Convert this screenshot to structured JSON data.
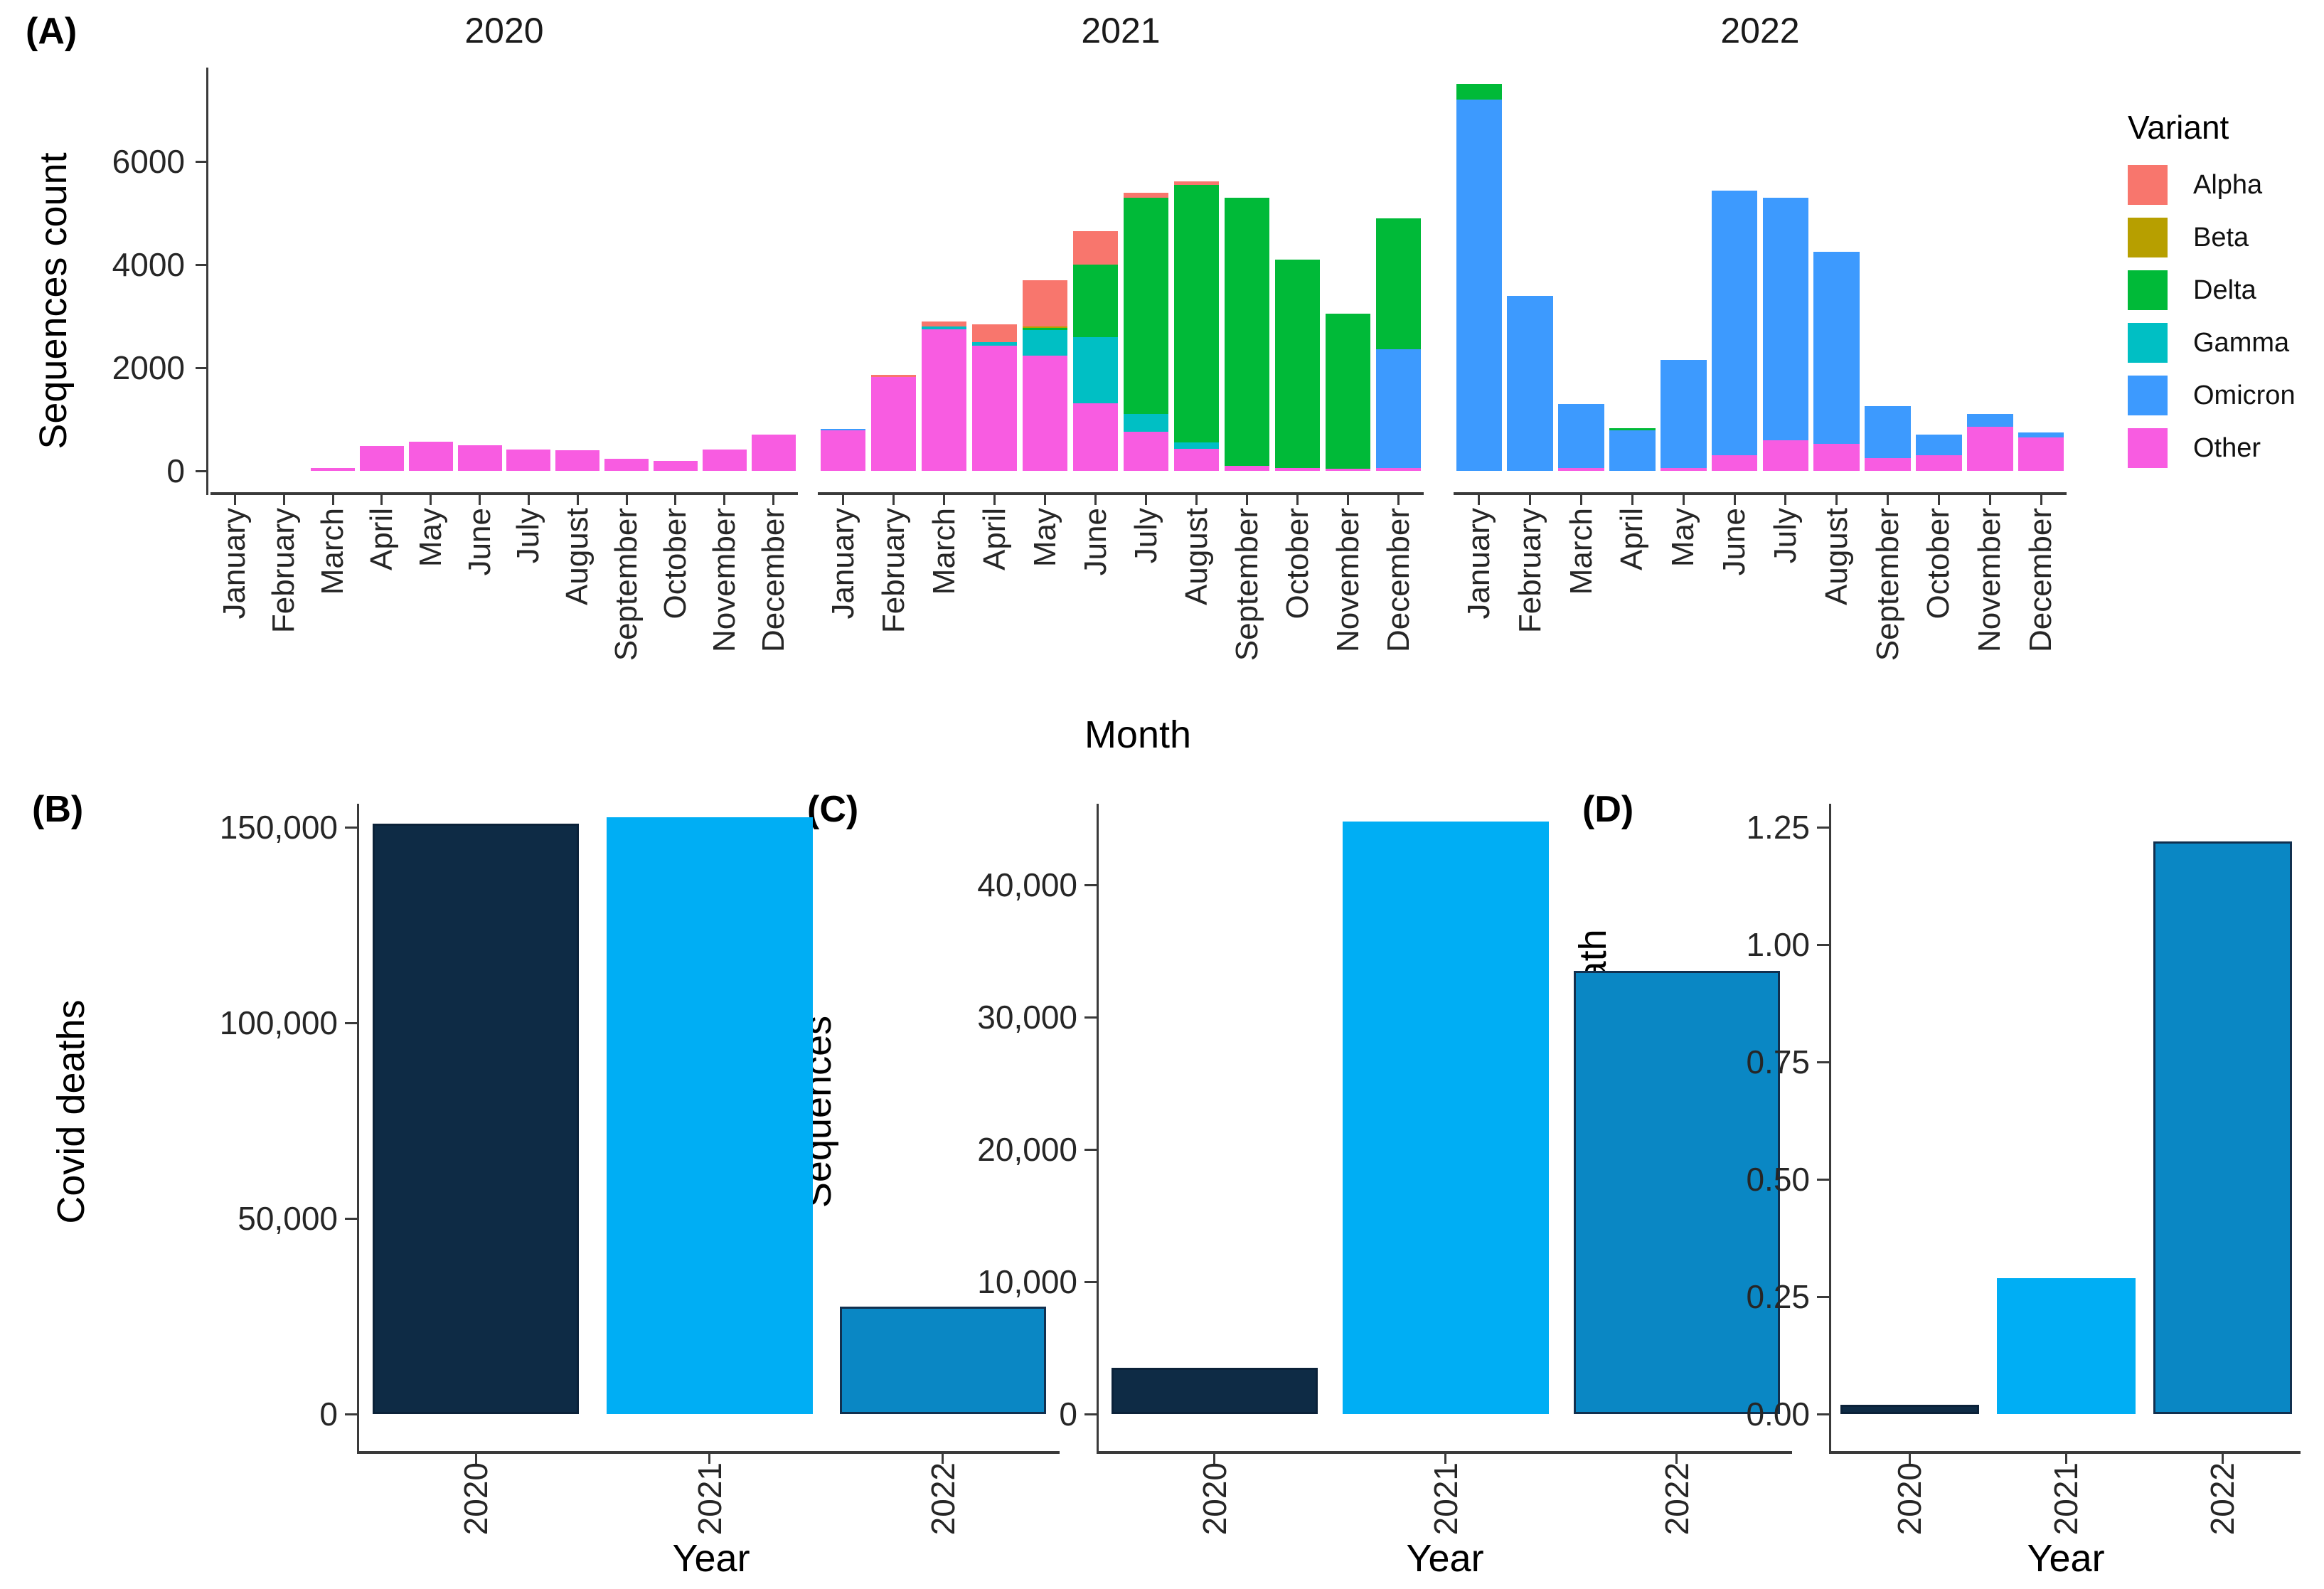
{
  "figure": {
    "description": "Four-panel figure of SARS-CoV-2 sequencing: monthly sequence counts by variant (A), and yearly Covid deaths (B), sequences (C), sequences per death (D)"
  },
  "chart_data": [
    {
      "id": "A",
      "tag": "(A)",
      "type": "bar",
      "stacked": true,
      "facets": [
        "2020",
        "2021",
        "2022"
      ],
      "categories": [
        "January",
        "February",
        "March",
        "April",
        "May",
        "June",
        "July",
        "August",
        "September",
        "October",
        "November",
        "December"
      ],
      "ylabel": "Sequences count",
      "xlabel": "Month",
      "ylim": [
        0,
        7800
      ],
      "yticks": [
        0,
        2000,
        4000,
        6000
      ],
      "ytick_labels": [
        "0",
        "2000",
        "4000",
        "6000"
      ],
      "grid": false,
      "legend_position": "right",
      "legend": {
        "title": "Variant",
        "entries": [
          {
            "label": "Alpha",
            "color": "#F8766D"
          },
          {
            "label": "Beta",
            "color": "#B79F00"
          },
          {
            "label": "Delta",
            "color": "#00BA38"
          },
          {
            "label": "Gamma",
            "color": "#00BFC4"
          },
          {
            "label": "Omicron",
            "color": "#3D9AFE"
          },
          {
            "label": "Other",
            "color": "#F85CE1"
          }
        ]
      },
      "stack_order": [
        "Other",
        "Omicron",
        "Gamma",
        "Delta",
        "Beta",
        "Alpha"
      ],
      "series": [
        {
          "name": "Alpha",
          "color": "#F8766D",
          "values": {
            "2020": [
              0,
              0,
              0,
              0,
              0,
              0,
              0,
              0,
              0,
              0,
              0,
              0
            ],
            "2021": [
              0,
              40,
              90,
              340,
              900,
              650,
              100,
              60,
              0,
              0,
              0,
              0
            ],
            "2022": [
              0,
              0,
              0,
              0,
              0,
              0,
              0,
              0,
              0,
              0,
              0,
              0
            ]
          }
        },
        {
          "name": "Beta",
          "color": "#B79F00",
          "values": {
            "2020": [
              0,
              0,
              0,
              0,
              0,
              0,
              0,
              0,
              0,
              0,
              0,
              0
            ],
            "2021": [
              0,
              0,
              0,
              0,
              30,
              0,
              0,
              0,
              0,
              0,
              0,
              0
            ],
            "2022": [
              0,
              0,
              0,
              0,
              0,
              0,
              0,
              0,
              0,
              0,
              0,
              0
            ]
          }
        },
        {
          "name": "Delta",
          "color": "#00BA38",
          "values": {
            "2020": [
              0,
              0,
              0,
              0,
              0,
              0,
              0,
              0,
              0,
              0,
              0,
              0
            ],
            "2021": [
              0,
              0,
              0,
              0,
              40,
              1400,
              4190,
              5000,
              5210,
              4050,
              3010,
              2540
            ],
            "2022": [
              300,
              0,
              0,
              40,
              0,
              0,
              0,
              0,
              0,
              0,
              0,
              0
            ]
          }
        },
        {
          "name": "Gamma",
          "color": "#00BFC4",
          "values": {
            "2020": [
              0,
              0,
              0,
              0,
              0,
              0,
              0,
              0,
              0,
              0,
              0,
              0
            ],
            "2021": [
              0,
              0,
              50,
              70,
              500,
              1290,
              350,
              120,
              0,
              0,
              0,
              0
            ],
            "2022": [
              0,
              0,
              0,
              0,
              0,
              0,
              0,
              0,
              0,
              0,
              0,
              0
            ]
          }
        },
        {
          "name": "Omicron",
          "color": "#3D9AFE",
          "values": {
            "2020": [
              0,
              0,
              0,
              0,
              0,
              0,
              0,
              0,
              0,
              0,
              0,
              0
            ],
            "2021": [
              40,
              0,
              0,
              0,
              0,
              0,
              0,
              0,
              0,
              0,
              0,
              2300
            ],
            "2022": [
              7200,
              3390,
              1250,
              790,
              2100,
              5140,
              4700,
              3730,
              1000,
              400,
              250,
              100
            ]
          }
        },
        {
          "name": "Other",
          "color": "#F85CE1",
          "values": {
            "2020": [
              0,
              0,
              60,
              480,
              560,
              500,
              410,
              400,
              230,
              190,
              410,
              700
            ],
            "2021": [
              780,
              1820,
              2750,
              2430,
              2230,
              1310,
              760,
              430,
              90,
              50,
              40,
              60
            ],
            "2022": [
              0,
              0,
              50,
              0,
              50,
              300,
              600,
              520,
              250,
              300,
              850,
              650
            ]
          }
        }
      ]
    },
    {
      "id": "B",
      "tag": "(B)",
      "type": "bar",
      "categories": [
        "2020",
        "2021",
        "2022"
      ],
      "values": [
        151000,
        152500,
        27500
      ],
      "ylabel": "Covid deaths",
      "xlabel": "Year",
      "ylim": [
        0,
        160000
      ],
      "yticks": [
        0,
        50000,
        100000,
        150000
      ],
      "ytick_labels": [
        "0",
        "50,000",
        "100,000",
        "150,000"
      ],
      "grid": false,
      "colors": [
        "#0E2B45",
        "#00AEF4",
        "#0A87C4"
      ],
      "bar_borders": [
        "#0B2239",
        null,
        "#11304F"
      ]
    },
    {
      "id": "C",
      "tag": "(C)",
      "type": "bar",
      "categories": [
        "2020",
        "2021",
        "2022"
      ],
      "values": [
        3500,
        44800,
        33500
      ],
      "ylabel": "Sequences",
      "xlabel": "Year",
      "ylim": [
        0,
        46500
      ],
      "yticks": [
        0,
        10000,
        20000,
        30000,
        40000
      ],
      "ytick_labels": [
        "0",
        "10,000",
        "20,000",
        "30,000",
        "40,000"
      ],
      "grid": false,
      "colors": [
        "#0E2B45",
        "#00AEF4",
        "#0A87C4"
      ],
      "bar_borders": [
        "#0B2239",
        null,
        "#11304F"
      ]
    },
    {
      "id": "D",
      "tag": "(D)",
      "type": "bar",
      "categories": [
        "2020",
        "2021",
        "2022"
      ],
      "values": [
        0.02,
        0.29,
        1.22
      ],
      "ylabel": "Sequences per death",
      "xlabel": "Year",
      "ylim": [
        0,
        1.28
      ],
      "yticks": [
        0,
        0.25,
        0.5,
        0.75,
        1.0,
        1.25
      ],
      "ytick_labels": [
        "0.00",
        "0.25",
        "0.50",
        "0.75",
        "1.00",
        "1.25"
      ],
      "grid": false,
      "colors": [
        "#0E2B45",
        "#00AEF4",
        "#0A87C4"
      ],
      "bar_borders": [
        "#0B2239",
        null,
        "#11304F"
      ]
    }
  ]
}
